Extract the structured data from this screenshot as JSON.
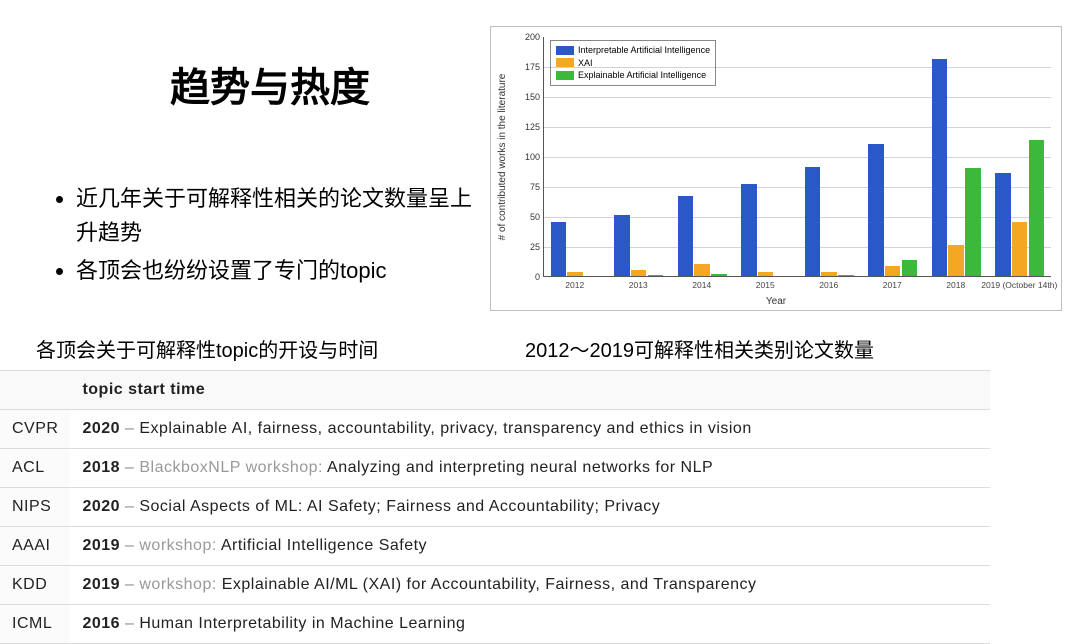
{
  "title": "趋势与热度",
  "bullets": [
    "近几年关于可解释性相关的论文数量呈上升趋势",
    "各顶会也纷纷设置了专门的topic"
  ],
  "subcaption_left": "各顶会关于可解释性topic的开设与时间",
  "subcaption_right": "2012～2019可解释性相关类别论文数量",
  "chart": {
    "type": "bar",
    "ylabel": "# of contributed works in the literature",
    "xlabel": "Year",
    "categories": [
      "2012",
      "2013",
      "2014",
      "2015",
      "2016",
      "2017",
      "2018",
      "2019 (October 14th)"
    ],
    "ylim": [
      0,
      200
    ],
    "ytick_step": 25,
    "grid_color": "#cfcfcf",
    "background_color": "#ffffff",
    "series": [
      {
        "name": "Interpretable Artificial Intelligence",
        "color": "#2a58c8",
        "values": [
          45,
          51,
          67,
          77,
          91,
          110,
          181,
          86
        ]
      },
      {
        "name": "XAI",
        "color": "#f5a623",
        "values": [
          3,
          5,
          10,
          3,
          3,
          8,
          26,
          45
        ]
      },
      {
        "name": "Explainable Artificial Intelligence",
        "color": "#3cb93c",
        "values": [
          0,
          1,
          2,
          0,
          1,
          13,
          90,
          113
        ]
      }
    ],
    "bar_group_width": 0.78,
    "title_fontsize": 10,
    "label_fontsize": 10
  },
  "table": {
    "header": [
      "",
      "topic start time"
    ],
    "rows": [
      {
        "conf": "CVPR",
        "year": "2020",
        "prefix": "",
        "text": "Explainable AI, fairness, accountability, privacy, transparency and ethics in vision"
      },
      {
        "conf": "ACL",
        "year": "2018",
        "prefix": "BlackboxNLP workshop: ",
        "text": "Analyzing and interpreting neural networks for NLP"
      },
      {
        "conf": "NIPS",
        "year": "2020",
        "prefix": "",
        "text": "Social Aspects of ML: AI Safety; Fairness and Accountability; Privacy"
      },
      {
        "conf": "AAAI",
        "year": "2019",
        "prefix": "workshop: ",
        "text": "Artificial Intelligence Safety"
      },
      {
        "conf": "KDD",
        "year": "2019",
        "prefix": "workshop: ",
        "text": "Explainable AI/ML (XAI) for Accountability, Fairness, and Transparency"
      },
      {
        "conf": "ICML",
        "year": "2016",
        "prefix": "",
        "text": "Human Interpretability in Machine Learning"
      }
    ]
  }
}
